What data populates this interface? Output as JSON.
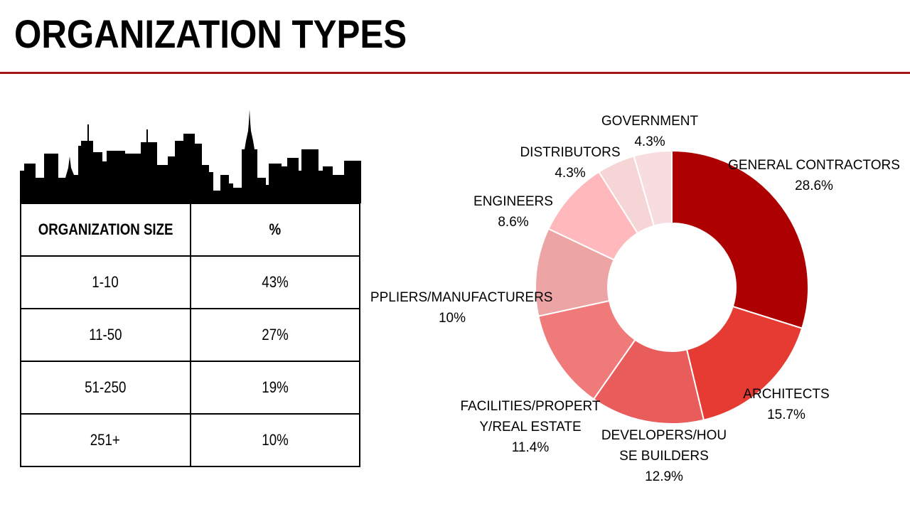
{
  "title": "ORGANIZATION TYPES",
  "table": {
    "headers": [
      "ORGANIZATION SIZE",
      "%"
    ],
    "rows": [
      [
        "1-10",
        "43%"
      ],
      [
        "11-50",
        "27%"
      ],
      [
        "51-250",
        "19%"
      ],
      [
        "251+",
        "10%"
      ]
    ]
  },
  "skyline_icon": "city-skyline-icon",
  "colors": {
    "accent_rule": "#a4161a",
    "table_border": "#000000"
  },
  "chart_data": {
    "type": "pie",
    "donut": true,
    "title": "",
    "slices": [
      {
        "label": [
          "GENERAL CONTRACTORS"
        ],
        "value": 28.6,
        "value_label": "28.6%",
        "color": "#ad0000"
      },
      {
        "label": [
          "ARCHITECTS"
        ],
        "value": 15.7,
        "value_label": "15.7%",
        "color": "#e53b33"
      },
      {
        "label": [
          "DEVELOPERS/HOU",
          "SE BUILDERS"
        ],
        "value": 12.9,
        "value_label": "12.9%",
        "color": "#e95c5c"
      },
      {
        "label": [
          "FACILITIES/PROPERT",
          "Y/REAL ESTATE"
        ],
        "value": 11.4,
        "value_label": "11.4%",
        "color": "#f07a7a"
      },
      {
        "label": [
          "SUPPLIERS/MANUFACTURERS"
        ],
        "value": 10,
        "value_label": "10%",
        "color": "#eda4a4"
      },
      {
        "label": [
          "ENGINEERS"
        ],
        "value": 8.6,
        "value_label": "8.6%",
        "color": "#ffb9bc"
      },
      {
        "label": [
          "DISTRIBUTORS"
        ],
        "value": 4.3,
        "value_label": "4.3%",
        "color": "#f5d5d6"
      },
      {
        "label": [
          "GOVERNMENT"
        ],
        "value": 4.3,
        "value_label": "4.3%",
        "color": "#f8dde0"
      }
    ]
  }
}
